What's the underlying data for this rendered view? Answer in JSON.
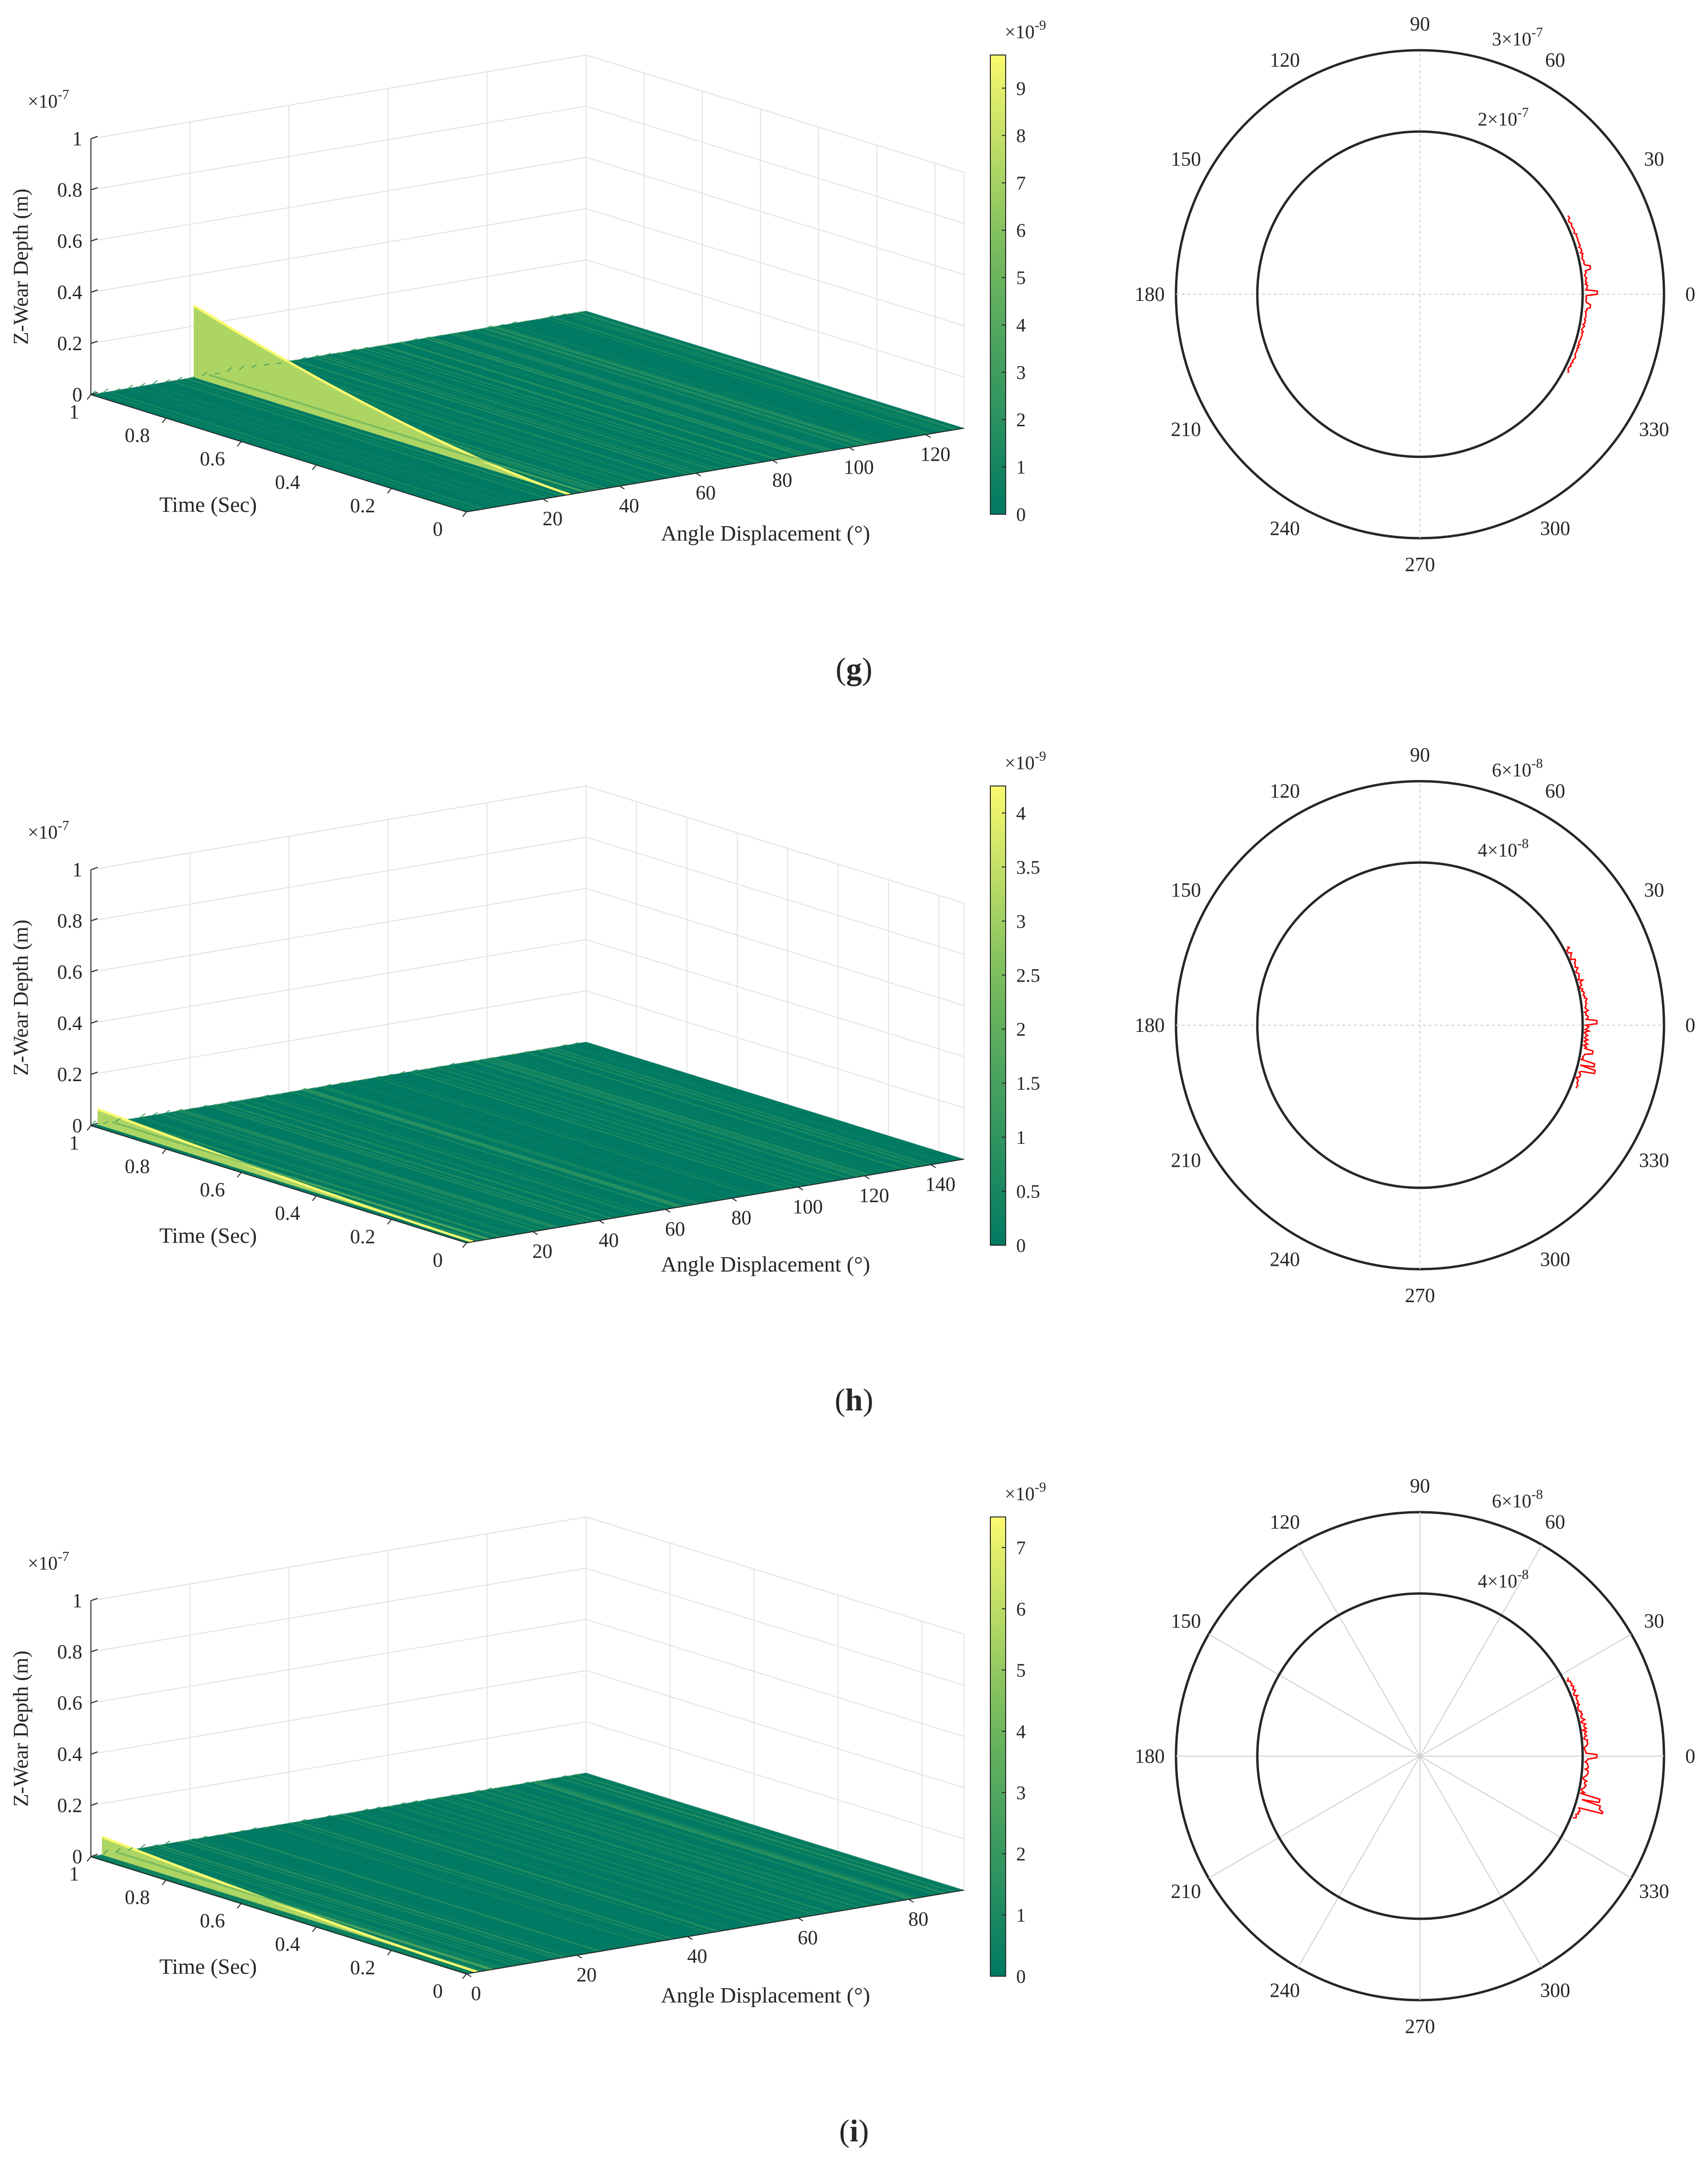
{
  "panels": [
    {
      "caption": "(g)",
      "caption_letter": "g",
      "surface": {
        "type": "surface3d",
        "zlabel": "Z-Wear Depth (m)",
        "ylabel": "Time (Sec)",
        "xlabel": "Angle Displacement (°)",
        "z_multiplier": "×10",
        "z_exponent": "-7",
        "z_ticks": [
          "0",
          "0.2",
          "0.4",
          "0.6",
          "0.8",
          "1"
        ],
        "z_range": [
          0,
          1
        ],
        "time_ticks": [
          "1",
          "0.8",
          "0.6",
          "0.4",
          "0.2",
          "0"
        ],
        "time_range": [
          1,
          0
        ],
        "angle_ticks": [
          "20",
          "40",
          "60",
          "80",
          "100",
          "120"
        ],
        "angle_range": [
          0,
          130
        ],
        "ridge_angle_deg": 27,
        "ridge_peak": 0.28,
        "colorbar": {
          "multiplier": "×10",
          "exponent": "-9",
          "ticks": [
            "0",
            "1",
            "2",
            "3",
            "4",
            "5",
            "6",
            "7",
            "8",
            "9"
          ],
          "range": [
            0,
            9.7
          ]
        }
      },
      "polar": {
        "type": "polar",
        "angle_ticks": [
          "90",
          "60",
          "30",
          "0",
          "330",
          "300",
          "270",
          "240",
          "210",
          "180",
          "150",
          "120"
        ],
        "rings": [
          {
            "label": "2×10",
            "exponent": "-7",
            "value": 2e-07
          },
          {
            "label": "3×10",
            "exponent": "-7",
            "value": 3e-07
          }
        ],
        "r_max": 3e-07,
        "radial_spokes": false,
        "trace_color": "#ff0000",
        "trace": {
          "theta_range": [
            -28,
            28
          ],
          "base": 2.05e-07,
          "noise": 3e-09,
          "spikes": [
            {
              "theta": 0.5,
              "value": 2.18e-07
            },
            {
              "theta": 9,
              "value": 2.12e-07
            },
            {
              "theta": -4,
              "value": 2.1e-07
            }
          ]
        }
      }
    },
    {
      "caption": "(h)",
      "caption_letter": "h",
      "surface": {
        "type": "surface3d",
        "zlabel": "Z-Wear Depth (m)",
        "ylabel": "Time (Sec)",
        "xlabel": "Angle Displacement (°)",
        "z_multiplier": "×10",
        "z_exponent": "-7",
        "z_ticks": [
          "0",
          "0.2",
          "0.4",
          "0.6",
          "0.8",
          "1"
        ],
        "z_range": [
          0,
          1
        ],
        "time_ticks": [
          "1",
          "0.8",
          "0.6",
          "0.4",
          "0.2",
          "0"
        ],
        "time_range": [
          1,
          0
        ],
        "angle_ticks": [
          "20",
          "40",
          "60",
          "80",
          "100",
          "120",
          "140"
        ],
        "angle_range": [
          0,
          150
        ],
        "ridge_angle_deg": 2,
        "ridge_peak": 0.06,
        "colorbar": {
          "multiplier": "×10",
          "exponent": "-9",
          "ticks": [
            "0",
            "0.5",
            "1",
            "1.5",
            "2",
            "2.5",
            "3",
            "3.5",
            "4"
          ],
          "range": [
            0,
            4.25
          ]
        }
      },
      "polar": {
        "type": "polar",
        "angle_ticks": [
          "90",
          "60",
          "30",
          "0",
          "330",
          "300",
          "270",
          "240",
          "210",
          "180",
          "150",
          "120"
        ],
        "rings": [
          {
            "label": "4×10",
            "exponent": "-8",
            "value": 4e-08
          },
          {
            "label": "6×10",
            "exponent": "-8",
            "value": 6e-08
          }
        ],
        "r_max": 6e-08,
        "radial_spokes": false,
        "trace_color": "#ff0000",
        "trace": {
          "theta_range": [
            -22,
            28
          ],
          "base": 4.1e-08,
          "noise": 1.2e-09,
          "spikes": [
            {
              "theta": -15,
              "value": 4.45e-08
            },
            {
              "theta": -13,
              "value": 4.4e-08
            },
            {
              "theta": 1,
              "value": 4.35e-08
            },
            {
              "theta": -9,
              "value": 4.3e-08
            }
          ]
        }
      }
    },
    {
      "caption": "(i)",
      "caption_letter": "i",
      "surface": {
        "type": "surface3d",
        "zlabel": "Z-Wear Depth (m)",
        "ylabel": "Time (Sec)",
        "xlabel": "Angle Displacement (°)",
        "z_multiplier": "×10",
        "z_exponent": "-7",
        "z_ticks": [
          "0",
          "0.2",
          "0.4",
          "0.6",
          "0.8",
          "1"
        ],
        "z_range": [
          0,
          1
        ],
        "time_ticks": [
          "1",
          "0.8",
          "0.6",
          "0.4",
          "0.2",
          "0"
        ],
        "time_range": [
          1,
          0
        ],
        "angle_ticks": [
          "0",
          "20",
          "40",
          "60",
          "80"
        ],
        "angle_range": [
          0,
          90
        ],
        "ridge_angle_deg": 2,
        "ridge_peak": 0.07,
        "colorbar": {
          "multiplier": "×10",
          "exponent": "-9",
          "ticks": [
            "0",
            "1",
            "2",
            "3",
            "4",
            "5",
            "6",
            "7"
          ],
          "range": [
            0,
            7.5
          ]
        }
      },
      "polar": {
        "type": "polar",
        "angle_ticks": [
          "90",
          "60",
          "30",
          "0",
          "330",
          "300",
          "270",
          "240",
          "210",
          "180",
          "150",
          "120"
        ],
        "rings": [
          {
            "label": "4×10",
            "exponent": "-8",
            "value": 4e-08
          },
          {
            "label": "6×10",
            "exponent": "-8",
            "value": 6e-08
          }
        ],
        "r_max": 6e-08,
        "radial_spokes": true,
        "trace_color": "#ff0000",
        "trace": {
          "theta_range": [
            -22,
            28
          ],
          "base": 4.1e-08,
          "noise": 1.2e-09,
          "spikes": [
            {
              "theta": -17,
              "value": 4.7e-08
            },
            {
              "theta": -16,
              "value": 4.6e-08
            },
            {
              "theta": -14,
              "value": 4.55e-08
            },
            {
              "theta": 0,
              "value": 4.35e-08
            }
          ]
        }
      }
    }
  ]
}
